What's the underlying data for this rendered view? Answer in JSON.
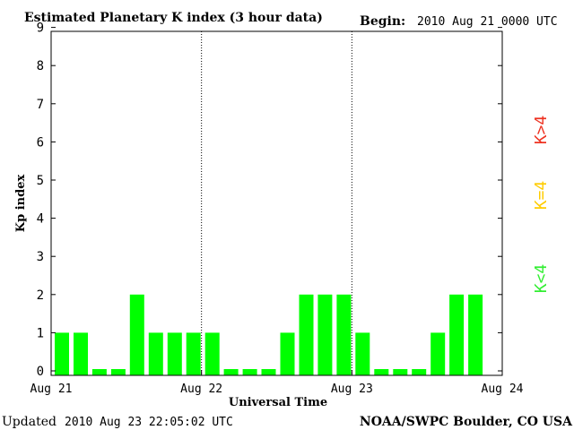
{
  "chart_data": {
    "type": "bar",
    "title": "Estimated Planetary K index (3 hour data)",
    "begin_label": "Begin:",
    "begin_value": "2010 Aug 21 0000 UTC",
    "xlabel": "Universal Time",
    "ylabel": "Kp index",
    "x_ticks": [
      "Aug 21",
      "Aug 22",
      "Aug 23",
      "Aug 24"
    ],
    "y_ticks": [
      "0",
      "1",
      "2",
      "3",
      "4",
      "5",
      "6",
      "7",
      "8",
      "9"
    ],
    "ylim": [
      0,
      9
    ],
    "interval_hours": 3,
    "values": [
      1,
      1,
      0,
      0,
      2,
      1,
      1,
      1,
      1,
      0,
      0,
      0,
      1,
      2,
      2,
      2,
      1,
      0,
      0,
      0,
      1,
      2,
      2
    ],
    "bar_color": "#00ff00",
    "legend": [
      {
        "text": "K<4",
        "color": "#33ee33"
      },
      {
        "text": "K=4",
        "color": "#ffcc00"
      },
      {
        "text": "K>4",
        "color": "#ee3322"
      }
    ],
    "legend_placement": "right, vertical",
    "grid": "dotted vertical lines at day boundaries"
  },
  "footer": {
    "updated_label": "Updated",
    "updated_value": "2010 Aug 23 22:05:02 UTC",
    "source": "NOAA/SWPC Boulder, CO USA"
  }
}
